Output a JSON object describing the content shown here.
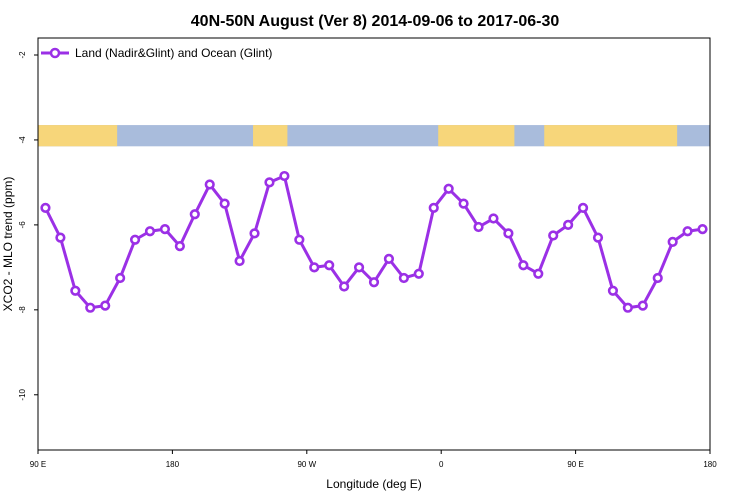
{
  "chart_data": {
    "type": "line",
    "title": "40N-50N August (Ver 8)   2014-09-06 to 2017-06-30",
    "xlabel": "Longitude (deg E)",
    "ylabel": "XCO2 - MLO trend (ppm)",
    "x_ticks": [
      "90 E",
      "180",
      "90 W",
      "0",
      "90 E",
      "180"
    ],
    "y_ticks": [
      "-2",
      "-4",
      "-6",
      "-8",
      "-10"
    ],
    "x_tick_positions": [
      90,
      180,
      270,
      360,
      450,
      540
    ],
    "y_tick_values": [
      -2,
      -4,
      -6,
      -8,
      -10
    ],
    "xlim": [
      90,
      540
    ],
    "ylim": [
      -11.3,
      -1.6
    ],
    "legend_position": "top-left",
    "colors": {
      "series": "#9b30e6",
      "land": "#f7d67a",
      "ocean": "#a9bcdc"
    },
    "series": [
      {
        "name": "Land (Nadir&Glint) and Ocean (Glint)",
        "x": [
          95,
          105,
          115,
          125,
          135,
          145,
          155,
          165,
          175,
          185,
          195,
          205,
          215,
          225,
          235,
          245,
          255,
          265,
          275,
          285,
          295,
          305,
          315,
          325,
          335,
          345,
          355,
          365,
          375,
          385,
          395,
          405,
          415,
          425,
          435,
          445,
          455,
          465,
          475,
          485,
          495,
          505,
          515,
          525,
          535
        ],
        "y": [
          -5.6,
          -6.3,
          -7.55,
          -7.95,
          -7.9,
          -7.25,
          -6.35,
          -6.15,
          -6.1,
          -6.5,
          -5.75,
          -5.05,
          -5.5,
          -6.85,
          -6.2,
          -5.0,
          -4.85,
          -6.35,
          -7.0,
          -6.95,
          -7.45,
          -7.0,
          -7.35,
          -6.8,
          -7.25,
          -7.15,
          -5.6,
          -5.15,
          -5.5,
          -6.05,
          -5.85,
          -6.2,
          -6.95,
          -7.15,
          -6.25,
          -6.0,
          -5.6,
          -6.3,
          -7.55,
          -7.95,
          -7.9,
          -7.25,
          -6.4,
          -6.15,
          -6.1
        ]
      }
    ],
    "map_strip": {
      "y_range": [
        -3.65,
        -4.15
      ],
      "land_spans": [
        [
          90,
          143
        ],
        [
          234,
          257
        ],
        [
          358,
          409
        ],
        [
          429,
          518
        ]
      ],
      "ocean_spans": [
        [
          143,
          234
        ],
        [
          257,
          358
        ],
        [
          409,
          429
        ],
        [
          518,
          540
        ]
      ]
    }
  }
}
